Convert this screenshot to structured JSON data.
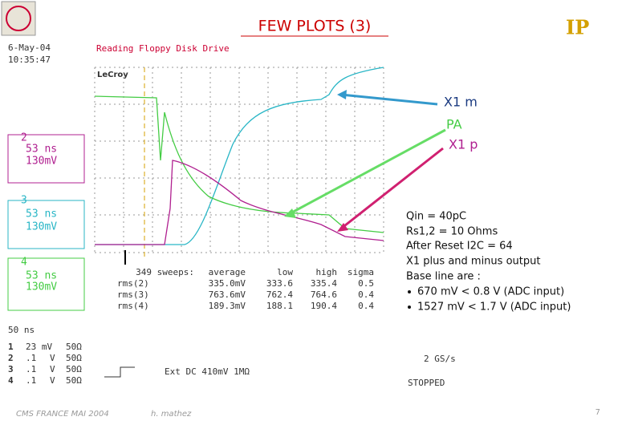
{
  "title": "FEW PLOTS (3)",
  "scope": {
    "date": "6-May-04",
    "time": "10:35:47",
    "caption": "Reading Floppy Disk Drive",
    "brand": "LeCroy",
    "channels": [
      {
        "number": "2",
        "time": "53 ns",
        "volts": "130mV"
      },
      {
        "number": "3",
        "time": "53 ns",
        "volts": "130mV"
      },
      {
        "number": "4",
        "time": "53 ns",
        "volts": "130mV"
      }
    ],
    "stats": {
      "header": [
        "349 sweeps:",
        "average",
        "low",
        "high",
        "sigma"
      ],
      "rows": [
        [
          "rms(2)",
          "335.0mV",
          "333.6",
          "335.4",
          "0.5"
        ],
        [
          "rms(3)",
          "763.6mV",
          "762.4",
          "764.6",
          "0.4"
        ],
        [
          "rms(4)",
          "189.3mV",
          "188.1",
          "190.4",
          "0.4"
        ]
      ]
    },
    "timebase": "50 ns",
    "settings": [
      [
        "1",
        "23 mV",
        "50Ω"
      ],
      [
        "2",
        ".1",
        "V",
        "50Ω"
      ],
      [
        "3",
        ".1",
        "V",
        "50Ω"
      ],
      [
        "4",
        ".1",
        "V",
        "50Ω"
      ]
    ],
    "trigger": "Ext DC 410mV 1MΩ",
    "rate": "2 GS/s",
    "status": "STOPPED"
  },
  "annotations": [
    "X1 m",
    "PA",
    "X1 p"
  ],
  "notes": [
    "Qin = 40pC",
    "Rs1,2 = 10 Ohms",
    "After Reset I2C = 64",
    "X1 plus and minus output",
    "Base line are :",
    "670 mV < 0.8 V (ADC input)",
    "1527 mV < 1.7 V (ADC input)"
  ],
  "footer": {
    "left": "CMS FRANCE MAI 2004",
    "author": "h. mathez",
    "page": "7"
  }
}
